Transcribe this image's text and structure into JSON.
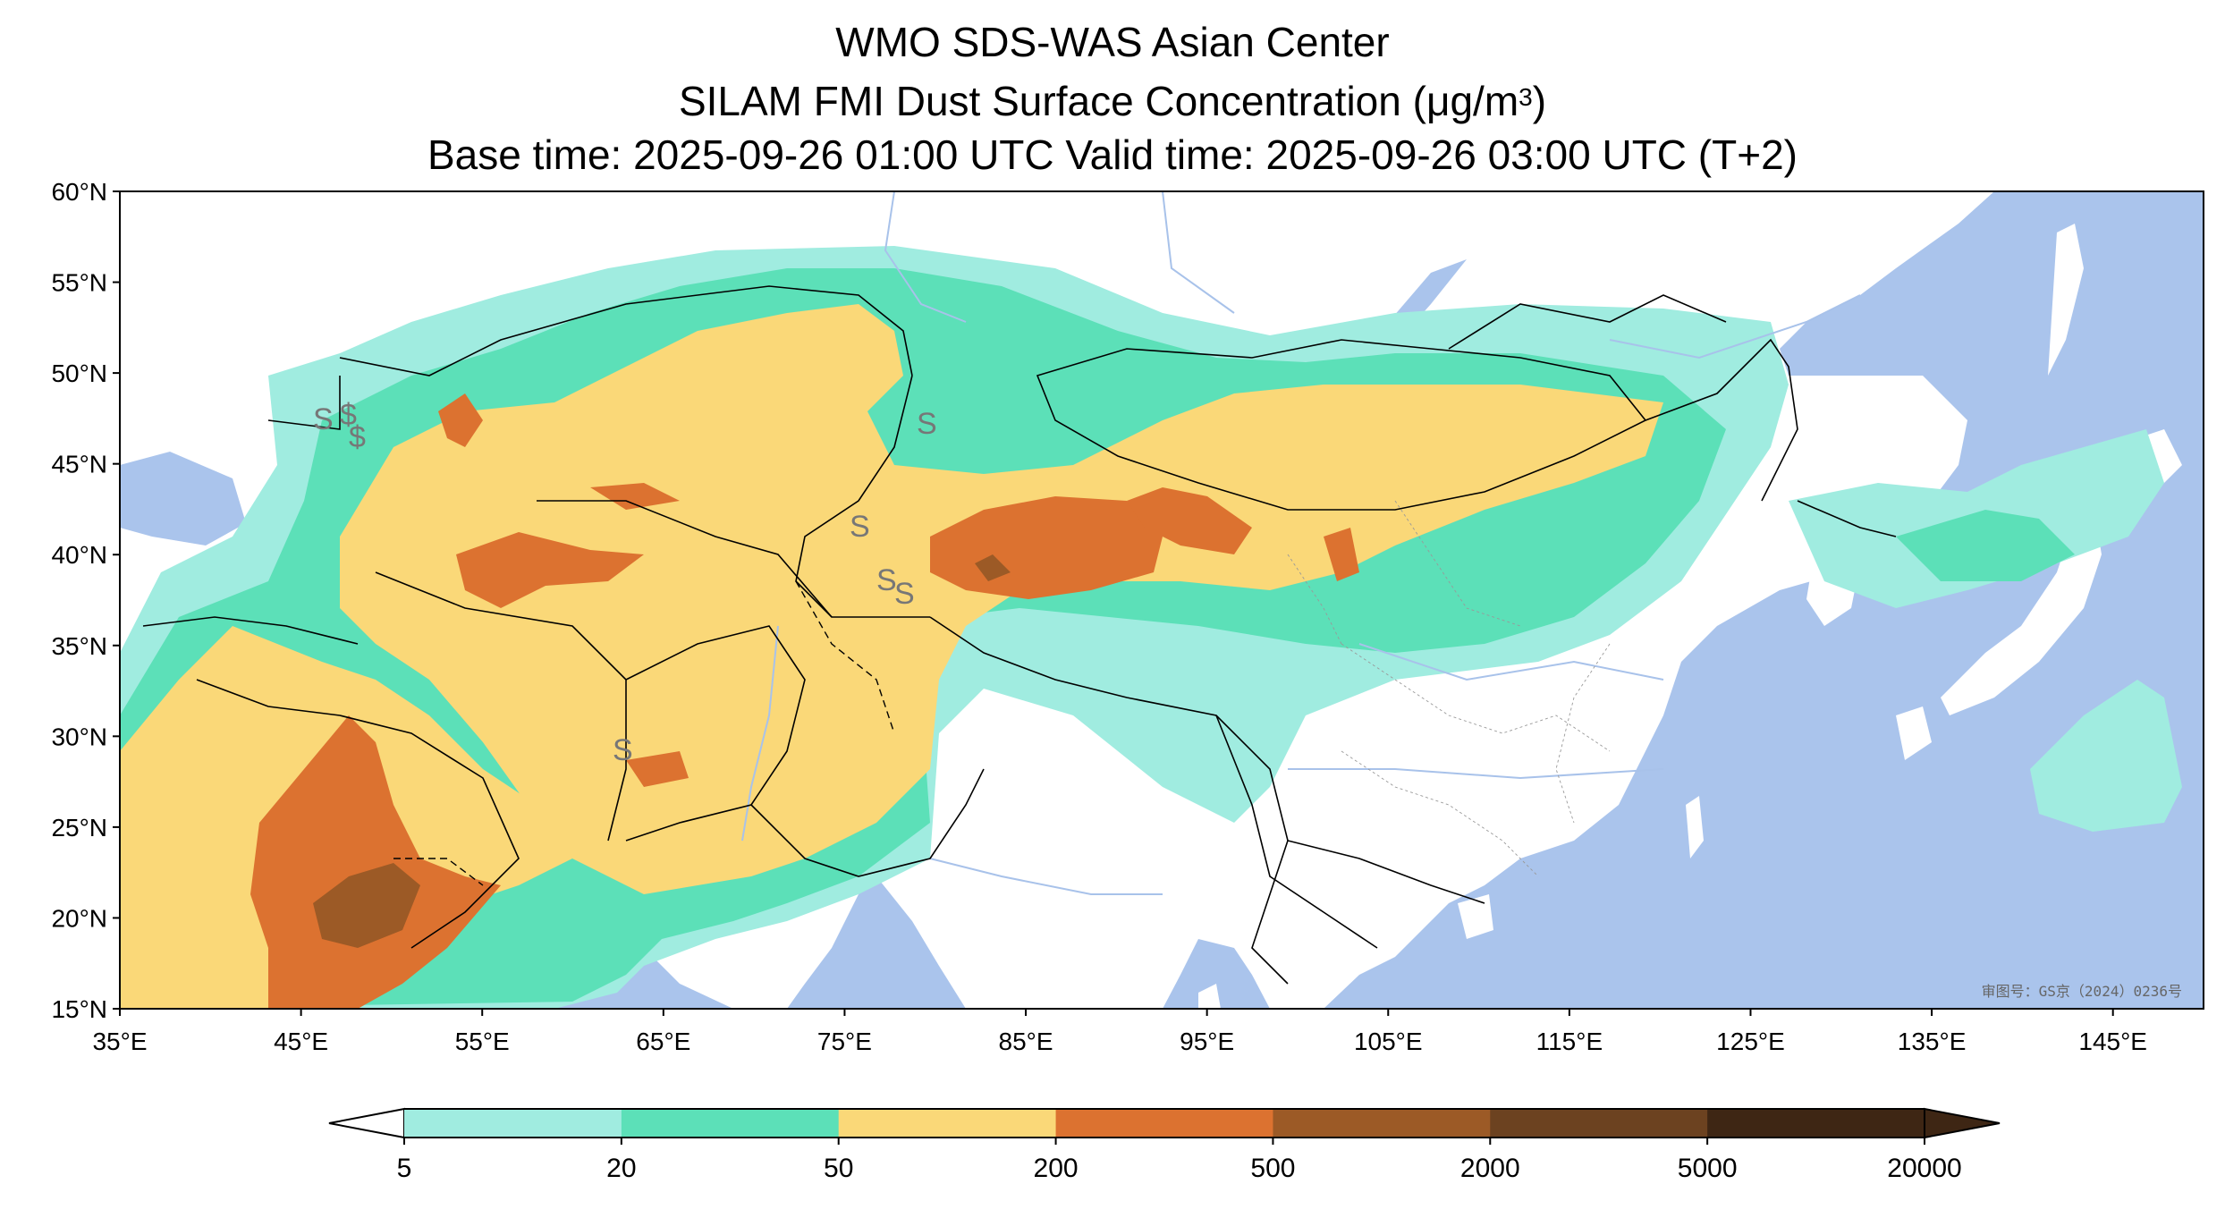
{
  "header": {
    "title_line1": "WMO SDS-WAS Asian Center",
    "title_line2_prefix": "SILAM FMI Dust Surface Concentration (",
    "title_line2_mu": "μ",
    "title_line2_unit": "g/m",
    "title_line2_sup": "3",
    "title_line2_suffix": ")",
    "title_line3": "Base time: 2025-09-26 01:00 UTC Valid time: 2025-09-26 03:00 UTC (T+2)"
  },
  "map": {
    "extent": {
      "lon": [
        35,
        150
      ],
      "lat": [
        15,
        60
      ]
    },
    "lat_ticks": [
      "60°N",
      "55°N",
      "50°N",
      "45°N",
      "40°N",
      "35°N",
      "30°N",
      "25°N",
      "20°N",
      "15°N"
    ],
    "lon_ticks": [
      "35°E",
      "45°E",
      "55°E",
      "65°E",
      "75°E",
      "85°E",
      "95°E",
      "105°E",
      "115°E",
      "125°E",
      "135°E",
      "145°E"
    ],
    "watermark": "审图号：GS京（2024）0236号",
    "ocean_color": "#aac4ec",
    "land_color": "#ffffff"
  },
  "colorbar": {
    "labels": [
      "5",
      "20",
      "50",
      "200",
      "500",
      "2000",
      "5000",
      "20000"
    ],
    "colors": [
      "#a0ece0",
      "#5ce0b8",
      "#fad878",
      "#dc7230",
      "#9c5a26",
      "#6c4220",
      "#3e2614"
    ]
  }
}
